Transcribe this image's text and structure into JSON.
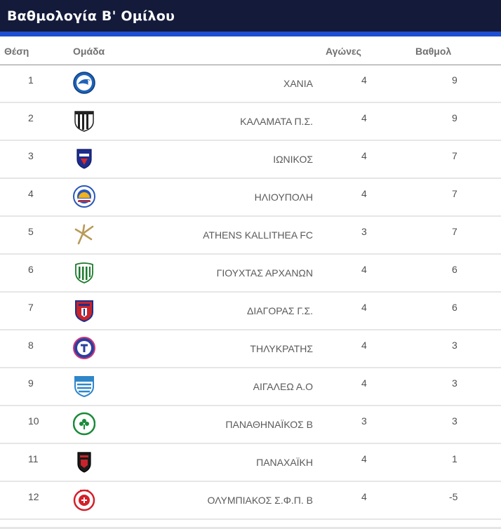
{
  "header": {
    "title": "Βαθμολογία Β' Ομίλου"
  },
  "columns": {
    "position": "Θέση",
    "team": "Ομάδα",
    "played": "Αγώνες",
    "points": "Βαθμολ"
  },
  "rows": [
    {
      "position": "1",
      "team": "ΧΑΝΙΑ",
      "played": "4",
      "points": "9",
      "logo": "chania-crest-icon"
    },
    {
      "position": "2",
      "team": "ΚΑΛΑΜΑΤΑ Π.Σ.",
      "played": "4",
      "points": "9",
      "logo": "kalamata-crest-icon"
    },
    {
      "position": "3",
      "team": "ΙΩΝΙΚΟΣ",
      "played": "4",
      "points": "7",
      "logo": "ionikos-crest-icon"
    },
    {
      "position": "4",
      "team": "ΗΛΙΟΥΠΟΛΗ",
      "played": "4",
      "points": "7",
      "logo": "ilioupoli-crest-icon"
    },
    {
      "position": "5",
      "team": "ATHENS KALLITHEA FC",
      "played": "3",
      "points": "7",
      "logo": "kallithea-crest-icon"
    },
    {
      "position": "6",
      "team": "ΓΙΟΥΧΤΑΣ ΑΡΧΑΝΩΝ",
      "played": "4",
      "points": "6",
      "logo": "giouchtas-crest-icon"
    },
    {
      "position": "7",
      "team": "ΔΙΑΓΟΡΑΣ Γ.Σ.",
      "played": "4",
      "points": "6",
      "logo": "diagoras-crest-icon"
    },
    {
      "position": "8",
      "team": "ΤΗΛΥΚΡΑΤΗΣ",
      "played": "4",
      "points": "3",
      "logo": "tilikratis-crest-icon"
    },
    {
      "position": "9",
      "team": "ΑΙΓΑΛΕΩ Α.Ο",
      "played": "4",
      "points": "3",
      "logo": "aigaleo-crest-icon"
    },
    {
      "position": "10",
      "team": "ΠΑΝΑΘΗΝΑΪΚΟΣ Β",
      "played": "3",
      "points": "3",
      "logo": "panathinaikos-crest-icon"
    },
    {
      "position": "11",
      "team": "ΠΑΝΑΧΑΪΚΗ",
      "played": "4",
      "points": "1",
      "logo": "panachaiki-crest-icon"
    },
    {
      "position": "12",
      "team": "ΟΛΥΜΠΙΑΚΟΣ Σ.Φ.Π. Β",
      "played": "4",
      "points": "-5",
      "logo": "olympiakos-crest-icon"
    }
  ],
  "colors": {
    "header_bg": "#141a3a",
    "header_accent": "#1f4fd1",
    "row_divider": "#e6e6e6"
  }
}
